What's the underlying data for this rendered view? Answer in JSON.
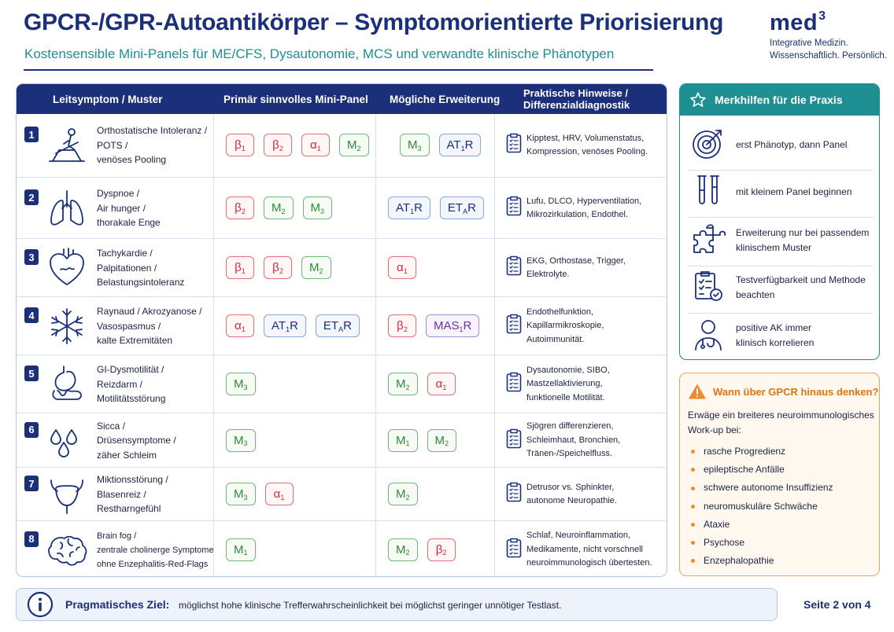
{
  "header": {
    "title": "GPCR-/GPR-Autoantikörper – Symptomorientierte Priorisierung",
    "subtitle": "Kostensensible Mini-Panels für ME/CFS, Dysautonomie, MCS und verwandte klinische Phänotypen"
  },
  "logo": {
    "name": "med",
    "sup": "3",
    "line1": "Integrative Medizin.",
    "line2": "Wissenschaftlich. Persönlich."
  },
  "table": {
    "columns": {
      "symptom": "Leitsymptom / Muster",
      "primary": "Primär sinnvolles Mini-Panel",
      "extension": "Mögliche Erweiterung",
      "hints_1": "Praktische Hinweise /",
      "hints_2": "Differenzialdiagnostik"
    },
    "rows": [
      {
        "num": "1",
        "icon": "tilt-table-icon",
        "lines": [
          "Orthostatische Intoleranz /",
          "POTS /",
          "venöses Pooling"
        ],
        "primary": [
          {
            "t": "β",
            "s": "1",
            "c": "red"
          },
          {
            "t": "β",
            "s": "2",
            "c": "red"
          },
          {
            "t": "α",
            "s": "1",
            "c": "red"
          },
          {
            "t": "M",
            "s": "2",
            "c": "green"
          }
        ],
        "extension": [
          {
            "t": "M",
            "s": "3",
            "c": "green"
          },
          {
            "t": "AT",
            "s": "1",
            "t2": "R",
            "c": "blue"
          }
        ],
        "hints": [
          "Kipptest, HRV, Volumenstatus,",
          "Kompression, venöses Pooling."
        ]
      },
      {
        "num": "2",
        "icon": "lungs-icon",
        "lines": [
          "Dyspnoe /",
          "Air hunger /",
          "thorakale Enge"
        ],
        "primary": [
          {
            "t": "β",
            "s": "2",
            "c": "red"
          },
          {
            "t": "M",
            "s": "2",
            "c": "green"
          },
          {
            "t": "M",
            "s": "3",
            "c": "green"
          }
        ],
        "extension": [
          {
            "t": "AT",
            "s": "1",
            "t2": "R",
            "c": "blue"
          },
          {
            "t": "ET",
            "s": "A",
            "t2": "R",
            "c": "blue"
          }
        ],
        "hints": [
          "Lufu, DLCO, Hyperventilation,",
          "Mikrozirkulation, Endothel."
        ]
      },
      {
        "num": "3",
        "icon": "heart-icon",
        "lines": [
          "Tachykardie /",
          "Palpitationen /",
          "Belastungsintoleranz"
        ],
        "primary": [
          {
            "t": "β",
            "s": "1",
            "c": "red"
          },
          {
            "t": "β",
            "s": "2",
            "c": "red"
          },
          {
            "t": "M",
            "s": "2",
            "c": "green"
          }
        ],
        "extension": [
          {
            "t": "α",
            "s": "1",
            "c": "red"
          }
        ],
        "hints": [
          "EKG, Orthostase, Trigger,",
          "Elektrolyte."
        ]
      },
      {
        "num": "4",
        "icon": "snowflake-icon",
        "lines": [
          "Raynaud / Akrozyanose /",
          "Vasospasmus /",
          "kalte Extremitäten"
        ],
        "primary": [
          {
            "t": "α",
            "s": "1",
            "c": "red"
          },
          {
            "t": "AT",
            "s": "1",
            "t2": "R",
            "c": "blue"
          },
          {
            "t": "ET",
            "s": "A",
            "t2": "R",
            "c": "blue"
          }
        ],
        "extension": [
          {
            "t": "β",
            "s": "2",
            "c": "red"
          },
          {
            "t": "MAS",
            "s": "1",
            "t2": "R",
            "c": "purple"
          }
        ],
        "hints": [
          "Endothelfunktion,",
          "Kapillarmikroskopie,",
          "Autoimmunität."
        ]
      },
      {
        "num": "5",
        "icon": "stomach-icon",
        "lines": [
          "GI-Dysmotilität /",
          "Reizdarm /",
          "Motilitätsstörung"
        ],
        "primary": [
          {
            "t": "M",
            "s": "3",
            "c": "green"
          }
        ],
        "extension": [
          {
            "t": "M",
            "s": "2",
            "c": "green"
          },
          {
            "t": "α",
            "s": "1",
            "c": "red"
          }
        ],
        "hints": [
          "Dysautonomie, SIBO,",
          "Mastzellaktivierung,",
          "funktionelle Motilität."
        ]
      },
      {
        "num": "6",
        "icon": "droplets-icon",
        "lines": [
          "Sicca /",
          "Drüsensymptome /",
          "zäher Schleim"
        ],
        "primary": [
          {
            "t": "M",
            "s": "3",
            "c": "green"
          }
        ],
        "extension": [
          {
            "t": "M",
            "s": "1",
            "c": "green"
          },
          {
            "t": "M",
            "s": "2",
            "c": "green"
          }
        ],
        "hints": [
          "Sjögren differenzieren,",
          "Schleimhaut, Bronchien,",
          "Tränen-/Speichelfluss."
        ]
      },
      {
        "num": "7",
        "icon": "bladder-icon",
        "lines": [
          "Miktionsstörung /",
          "Blasenreiz /",
          "Restharngefühl"
        ],
        "primary": [
          {
            "t": "M",
            "s": "3",
            "c": "green"
          },
          {
            "t": "α",
            "s": "1",
            "c": "red"
          }
        ],
        "extension": [
          {
            "t": "M",
            "s": "2",
            "c": "green"
          }
        ],
        "hints": [
          "Detrusor vs. Sphinkter,",
          "autonome Neuropathie."
        ]
      },
      {
        "num": "8",
        "icon": "brain-icon",
        "lines": [
          "Brain fog /",
          "zentrale cholinerge Symptome",
          "ohne Enzephalitis-Red-Flags"
        ],
        "primary": [
          {
            "t": "M",
            "s": "1",
            "c": "green"
          }
        ],
        "extension": [
          {
            "t": "M",
            "s": "2",
            "c": "green"
          },
          {
            "t": "β",
            "s": "2",
            "c": "red"
          }
        ],
        "hints": [
          "Schlaf, Neuroinflammation,",
          "Medikamente, nicht vorschnell",
          "neuroimmunologisch übertesten."
        ]
      }
    ]
  },
  "merkhilfen": {
    "title": "Merkhilfen für die Praxis",
    "items": [
      {
        "icon": "target-icon",
        "lines": [
          "erst Phänotyp, dann Panel"
        ]
      },
      {
        "icon": "test-tubes-icon",
        "lines": [
          "mit kleinem Panel beginnen"
        ]
      },
      {
        "icon": "puzzle-icon",
        "lines": [
          "Erweiterung nur bei passendem",
          "klinischem Muster"
        ]
      },
      {
        "icon": "checklist-icon",
        "lines": [
          "Testverfügbarkeit und Methode",
          "beachten"
        ]
      },
      {
        "icon": "doctor-icon",
        "lines": [
          "positive AK immer",
          "klinisch korrelieren"
        ]
      }
    ]
  },
  "beyond": {
    "title": "Wann über GPCR hinaus denken?",
    "intro_1": "Erwäge ein breiteres neuroimmunologisches",
    "intro_2": "Work-up bei:",
    "items": [
      "rasche Progredienz",
      "epileptische Anfälle",
      "schwere autonome Insuffizienz",
      "neuromuskuläre Schwäche",
      "Ataxie",
      "Psychose",
      "Enzephalopathie"
    ]
  },
  "footer": {
    "label": "Pragmatisches Ziel:",
    "text": "möglichst hohe klinische Trefferwahrscheinlichkeit bei möglichst geringer unnötiger Testlast.",
    "page": "Seite 2 von 4"
  },
  "colors": {
    "navy": "#1b2f7a",
    "teal": "#1e8f92",
    "red": "#d42c3a",
    "green": "#2d8a36",
    "purple": "#6a2fa8",
    "orange": "#e07415"
  }
}
